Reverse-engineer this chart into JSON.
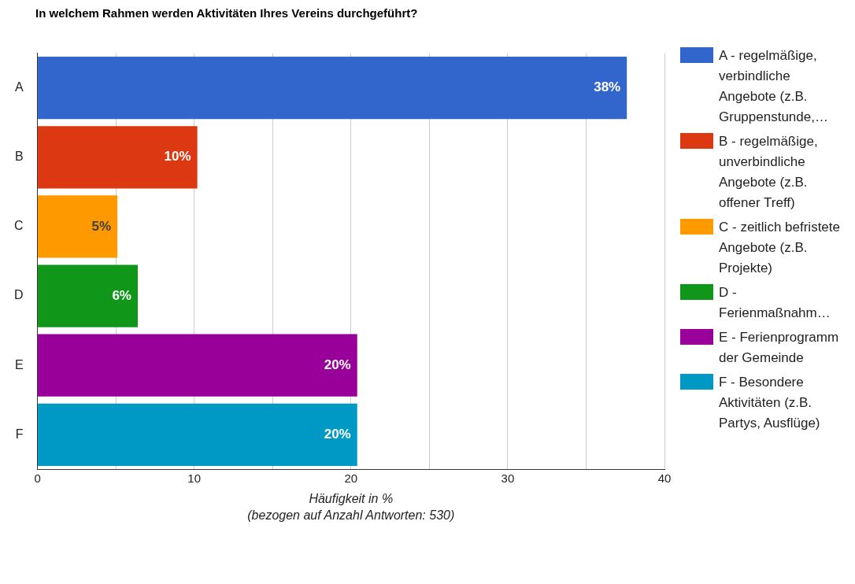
{
  "chart_data": {
    "type": "bar",
    "orientation": "horizontal",
    "stacked": true,
    "title": "In welchem Rahmen werden Aktivitäten Ihres Vereins durchgeführt?",
    "xlabel": "Häufigkeit in %\n(bezogen auf Anzahl Antworten: 530)",
    "categories": [
      "A",
      "B",
      "C",
      "D",
      "E",
      "F"
    ],
    "series": [
      {
        "name": "A - regelmäßige, verbindliche Angebote (z.B. Gruppenstunde,…",
        "color": "#3366cc",
        "values": [
          37.6,
          null,
          null,
          null,
          null,
          null
        ],
        "value_labels": [
          "38%",
          null,
          null,
          null,
          null,
          null
        ]
      },
      {
        "name": "B - regelmäßige, unverbindliche Angebote (z.B. offener Treff)",
        "color": "#dc3912",
        "values": [
          null,
          10.2,
          null,
          null,
          null,
          null
        ],
        "value_labels": [
          null,
          "10%",
          null,
          null,
          null,
          null
        ]
      },
      {
        "name": "C - zeitlich befristete Angebote (z.B. Projekte)",
        "color": "#ff9900",
        "values": [
          null,
          null,
          5.1,
          null,
          null,
          null
        ],
        "value_labels": [
          null,
          null,
          "5%",
          null,
          null,
          null
        ]
      },
      {
        "name": "D - Ferienmaßnahm…",
        "color": "#109618",
        "values": [
          null,
          null,
          null,
          6.4,
          null,
          null
        ],
        "value_labels": [
          null,
          null,
          null,
          "6%",
          null,
          null
        ]
      },
      {
        "name": "E - Ferienprogramm der Gemeinde",
        "color": "#990099",
        "values": [
          null,
          null,
          null,
          null,
          20.4,
          null
        ],
        "value_labels": [
          null,
          null,
          null,
          null,
          "20%",
          null
        ]
      },
      {
        "name": "F - Besondere Aktivitäten (z.B. Partys, Ausflüge)",
        "color": "#0099c6",
        "values": [
          null,
          null,
          null,
          null,
          null,
          20.4
        ],
        "value_labels": [
          null,
          null,
          null,
          null,
          null,
          "20%"
        ]
      }
    ],
    "xlim": [
      0,
      40
    ],
    "xticks": [
      0,
      {
        "value": 5,
        "label": null
      },
      10,
      {
        "value": 15,
        "label": null
      },
      20,
      {
        "value": 25,
        "label": null
      },
      30,
      {
        "value": 35,
        "label": null
      },
      40
    ],
    "grid": "x",
    "legend": "right"
  }
}
